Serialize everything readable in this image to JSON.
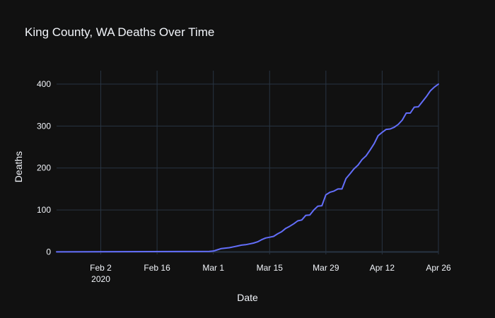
{
  "chart_data": {
    "type": "line",
    "title": "King County, WA Deaths Over Time",
    "xlabel": "Date",
    "ylabel": "Deaths",
    "x_range": [
      "2020-01-22",
      "2020-04-26"
    ],
    "ylim": [
      -6,
      432
    ],
    "grid": true,
    "legend": "none",
    "x_ticks": [
      {
        "date": "2020-02-02",
        "label": "Feb 2",
        "sublabel": "2020"
      },
      {
        "date": "2020-02-16",
        "label": "Feb 16",
        "sublabel": ""
      },
      {
        "date": "2020-03-01",
        "label": "Mar 1",
        "sublabel": ""
      },
      {
        "date": "2020-03-15",
        "label": "Mar 15",
        "sublabel": ""
      },
      {
        "date": "2020-03-29",
        "label": "Mar 29",
        "sublabel": ""
      },
      {
        "date": "2020-04-12",
        "label": "Apr 12",
        "sublabel": ""
      },
      {
        "date": "2020-04-26",
        "label": "Apr 26",
        "sublabel": ""
      }
    ],
    "y_ticks": [
      0,
      100,
      200,
      300,
      400
    ],
    "series": [
      {
        "color": "#636efa",
        "points": [
          [
            "2020-01-22",
            0
          ],
          [
            "2020-02-29",
            1
          ],
          [
            "2020-03-01",
            2
          ],
          [
            "2020-03-02",
            5
          ],
          [
            "2020-03-03",
            8
          ],
          [
            "2020-03-04",
            9
          ],
          [
            "2020-03-05",
            10
          ],
          [
            "2020-03-06",
            12
          ],
          [
            "2020-03-07",
            14
          ],
          [
            "2020-03-08",
            16
          ],
          [
            "2020-03-09",
            17
          ],
          [
            "2020-03-10",
            19
          ],
          [
            "2020-03-11",
            21
          ],
          [
            "2020-03-12",
            24
          ],
          [
            "2020-03-13",
            29
          ],
          [
            "2020-03-14",
            33
          ],
          [
            "2020-03-15",
            35
          ],
          [
            "2020-03-16",
            37
          ],
          [
            "2020-03-17",
            43
          ],
          [
            "2020-03-18",
            48
          ],
          [
            "2020-03-19",
            56
          ],
          [
            "2020-03-20",
            61
          ],
          [
            "2020-03-21",
            67
          ],
          [
            "2020-03-22",
            74
          ],
          [
            "2020-03-23",
            76
          ],
          [
            "2020-03-24",
            87
          ],
          [
            "2020-03-25",
            88
          ],
          [
            "2020-03-26",
            100
          ],
          [
            "2020-03-27",
            109
          ],
          [
            "2020-03-28",
            110
          ],
          [
            "2020-03-29",
            136
          ],
          [
            "2020-03-30",
            142
          ],
          [
            "2020-03-31",
            145
          ],
          [
            "2020-04-01",
            150
          ],
          [
            "2020-04-02",
            150
          ],
          [
            "2020-04-03",
            175
          ],
          [
            "2020-04-04",
            186
          ],
          [
            "2020-04-05",
            198
          ],
          [
            "2020-04-06",
            207
          ],
          [
            "2020-04-07",
            220
          ],
          [
            "2020-04-08",
            229
          ],
          [
            "2020-04-09",
            243
          ],
          [
            "2020-04-10",
            258
          ],
          [
            "2020-04-11",
            277
          ],
          [
            "2020-04-12",
            285
          ],
          [
            "2020-04-13",
            292
          ],
          [
            "2020-04-14",
            293
          ],
          [
            "2020-04-15",
            297
          ],
          [
            "2020-04-16",
            304
          ],
          [
            "2020-04-17",
            314
          ],
          [
            "2020-04-18",
            331
          ],
          [
            "2020-04-19",
            331
          ],
          [
            "2020-04-20",
            345
          ],
          [
            "2020-04-21",
            346
          ],
          [
            "2020-04-22",
            358
          ],
          [
            "2020-04-23",
            370
          ],
          [
            "2020-04-24",
            384
          ],
          [
            "2020-04-25",
            393
          ],
          [
            "2020-04-26",
            400
          ],
          [
            "2020-04-27",
            408
          ]
        ]
      }
    ]
  }
}
